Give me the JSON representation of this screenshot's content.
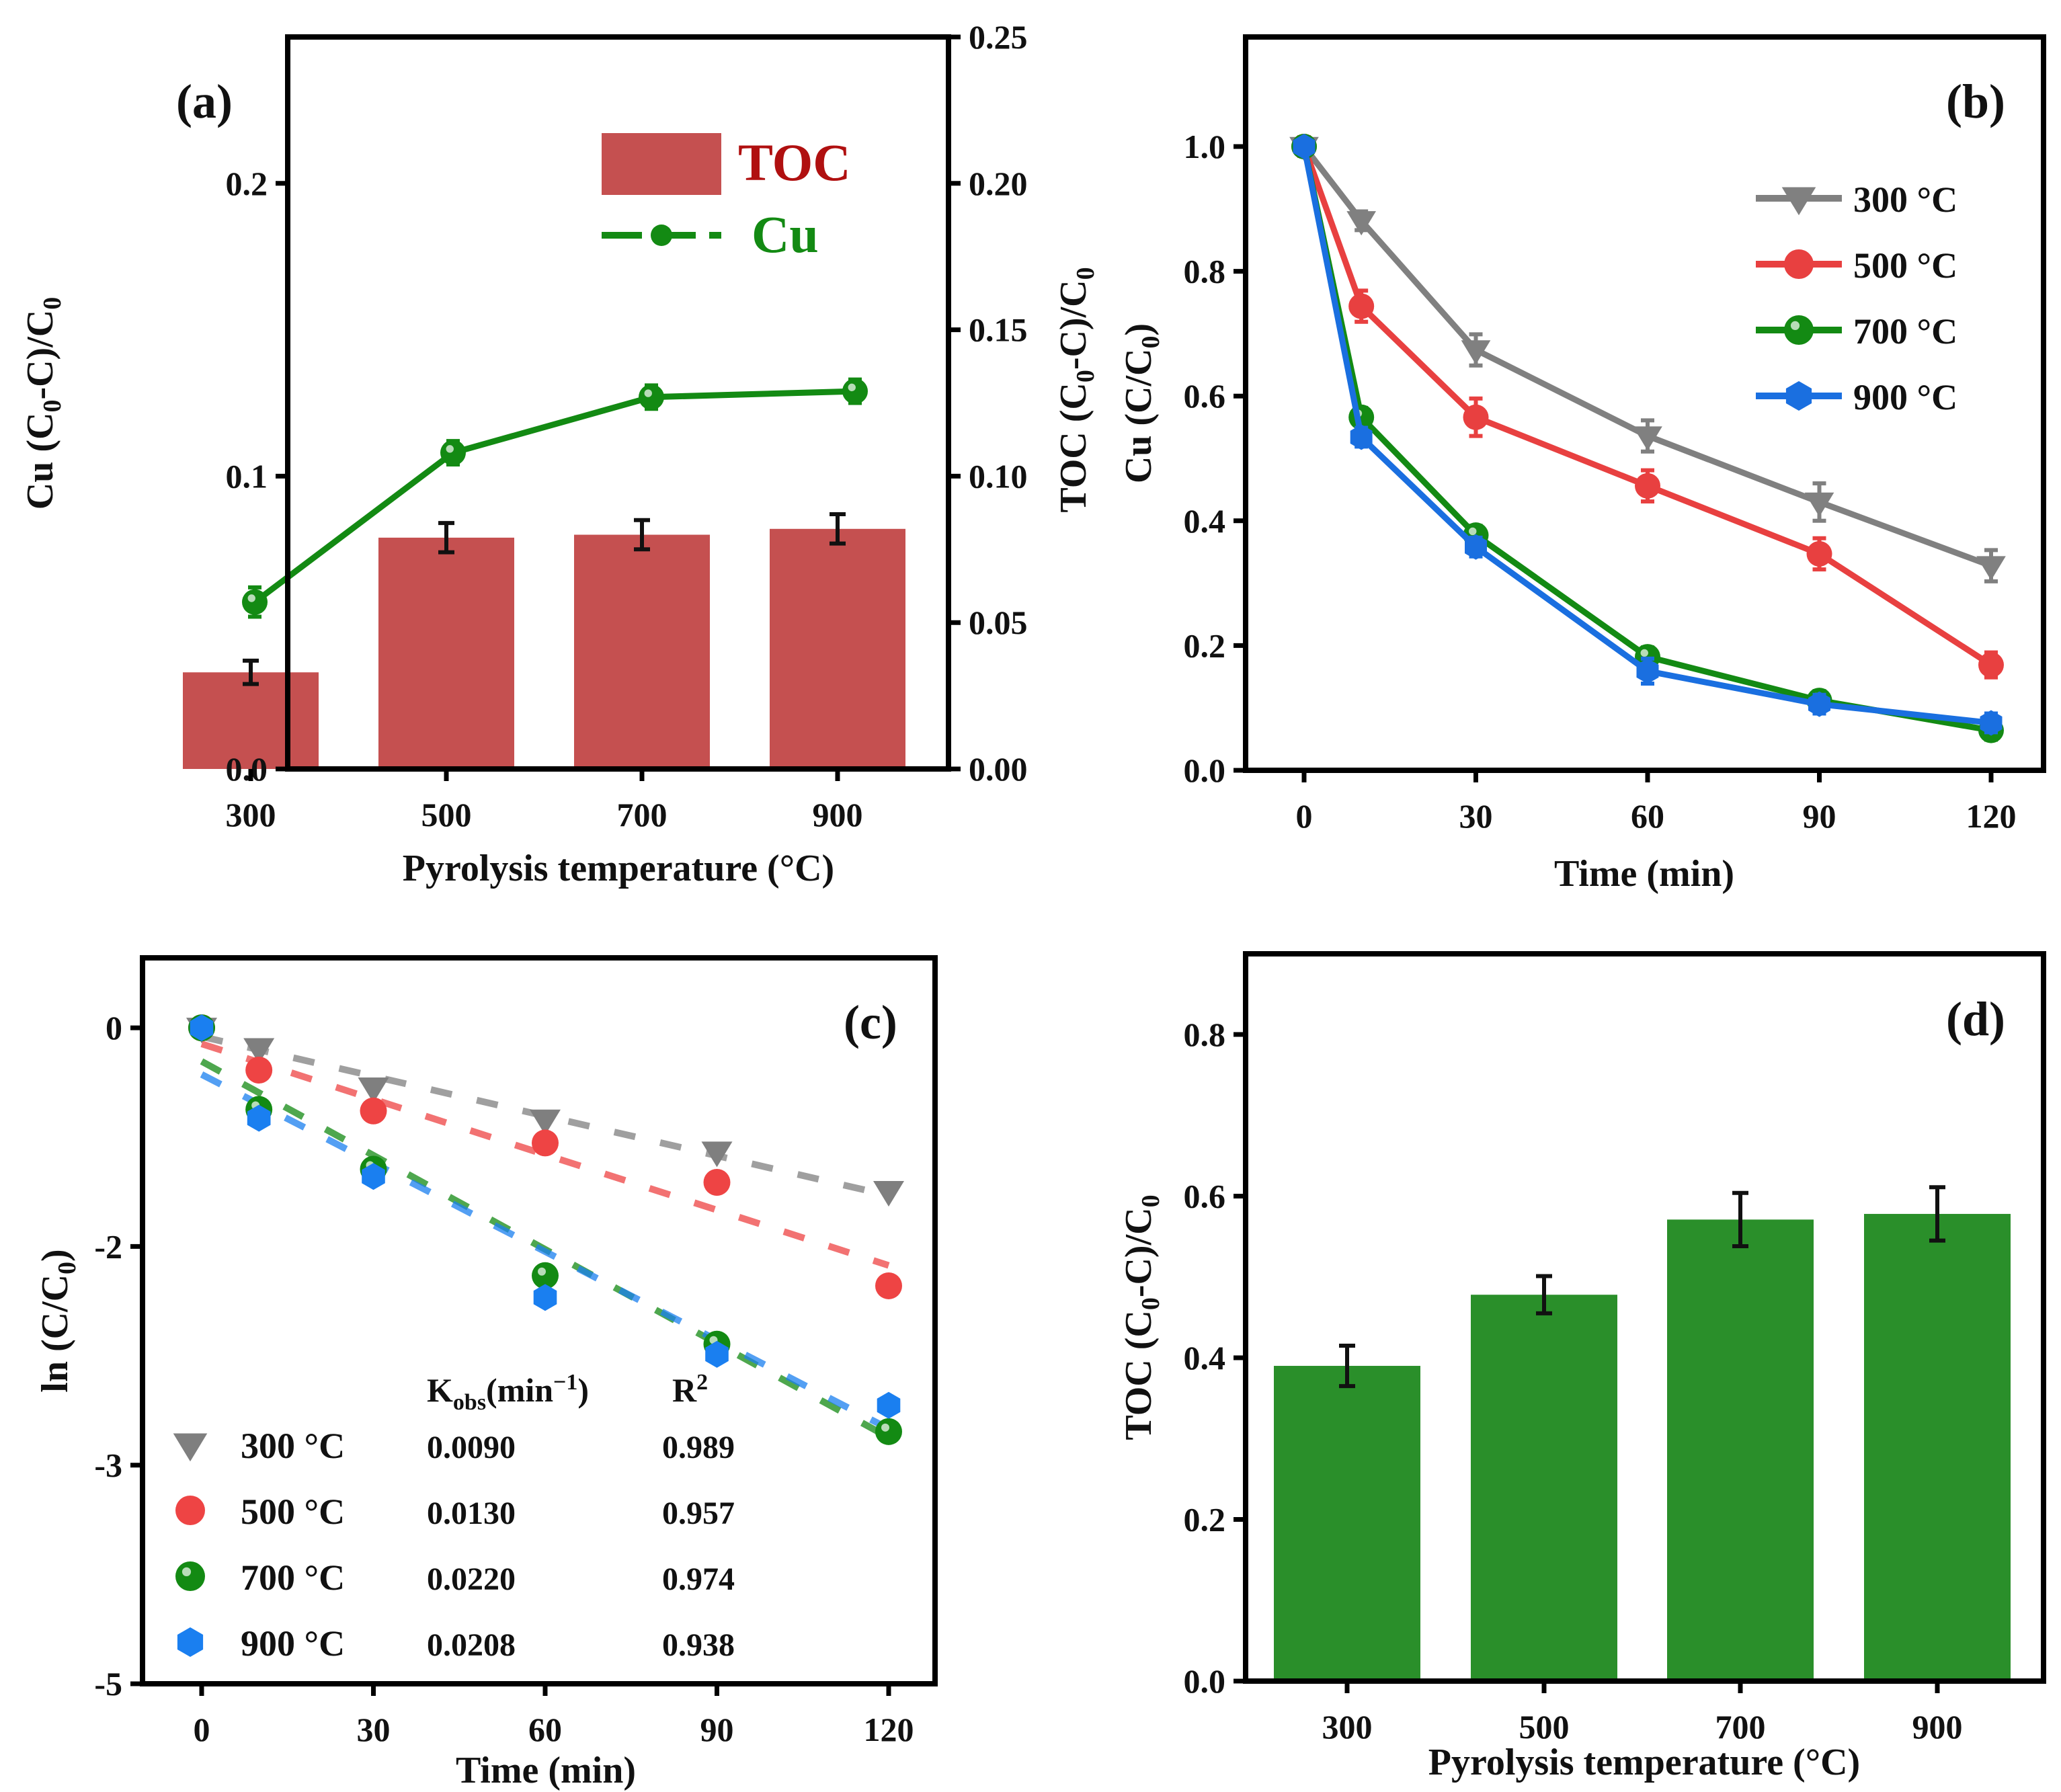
{
  "chart_data": [
    {
      "id": "a",
      "type": "bar+line",
      "panel_label": "(a)",
      "xlabel": "Pyrolysis temperature (°C)",
      "ylabel_left": "Cu (C0-C)/C0",
      "ylabel_right": "TOC (C0-C)/C0",
      "categories": [
        "300",
        "500",
        "700",
        "900"
      ],
      "ylim_left": [
        0,
        0.25
      ],
      "yticks_left": [
        0.0,
        0.1,
        0.2
      ],
      "ytick_labels_left": [
        "0.0",
        "0.1",
        "0.2"
      ],
      "ylim_right": [
        0,
        0.25
      ],
      "yticks_right": [
        0.0,
        0.05,
        0.1,
        0.15,
        0.2,
        0.25
      ],
      "ytick_labels_right": [
        "0.00",
        "0.05",
        "0.10",
        "0.15",
        "0.20",
        "0.25"
      ],
      "series": [
        {
          "name": "TOC",
          "kind": "bar",
          "axis": "right",
          "color": "#c55050",
          "values": [
            0.033,
            0.079,
            0.08,
            0.082
          ],
          "errors": [
            0.004,
            0.005,
            0.005,
            0.005
          ]
        },
        {
          "name": "Cu",
          "kind": "line",
          "axis": "left",
          "color": "#138a13",
          "values": [
            0.057,
            0.108,
            0.127,
            0.129
          ],
          "errors": [
            0.005,
            0.004,
            0.004,
            0.004
          ]
        }
      ],
      "legend": {
        "placement": "top-right",
        "entries": [
          {
            "label": "TOC",
            "color": "#b01010"
          },
          {
            "label": "Cu",
            "color": "#138a13"
          }
        ]
      },
      "grid": false
    },
    {
      "id": "b",
      "type": "line",
      "panel_label": "(b)",
      "xlabel": "Time (min)",
      "ylabel": "Cu (C/C0)",
      "x": [
        0,
        10,
        30,
        60,
        90,
        120
      ],
      "xticks": [
        0,
        30,
        60,
        90,
        120
      ],
      "xlim": [
        -10,
        130
      ],
      "ylim": [
        0,
        1.17
      ],
      "yticks": [
        0.0,
        0.2,
        0.4,
        0.6,
        0.8,
        1.0
      ],
      "ytick_labels": [
        "0.0",
        "0.2",
        "0.4",
        "0.6",
        "0.8",
        "1.0"
      ],
      "series": [
        {
          "name": "300 °C",
          "marker": "triangle-down",
          "color": "#808080",
          "values": [
            1.0,
            0.881,
            0.674,
            0.536,
            0.43,
            0.328
          ],
          "errors": [
            0.015,
            0.015,
            0.025,
            0.025,
            0.03,
            0.025
          ]
        },
        {
          "name": "500 °C",
          "marker": "circle",
          "color": "#e84040",
          "values": [
            1.0,
            0.744,
            0.566,
            0.456,
            0.347,
            0.169
          ],
          "errors": [
            0.015,
            0.025,
            0.03,
            0.025,
            0.025,
            0.02
          ]
        },
        {
          "name": "700 °C",
          "marker": "sphere",
          "color": "#138a13",
          "values": [
            1.0,
            0.566,
            0.377,
            0.182,
            0.112,
            0.064
          ],
          "errors": [
            0.01,
            0.015,
            0.015,
            0.015,
            0.015,
            0.015
          ]
        },
        {
          "name": "900 °C",
          "marker": "hexagon",
          "color": "#1a6fe0",
          "values": [
            1.0,
            0.534,
            0.358,
            0.159,
            0.106,
            0.076
          ],
          "errors": [
            0.01,
            0.015,
            0.015,
            0.02,
            0.015,
            0.015
          ]
        }
      ],
      "legend": {
        "placement": "top-right"
      },
      "grid": false
    },
    {
      "id": "c",
      "type": "scatter",
      "panel_label": "(c)",
      "xlabel": "Time (min)",
      "ylabel": "ln (C/C0)",
      "x": [
        0,
        10,
        30,
        60,
        90,
        120
      ],
      "xticks": [
        0,
        30,
        60,
        90,
        120
      ],
      "xlim": [
        -10,
        130
      ],
      "ylim": [
        -4.5,
        0.48
      ],
      "yticks": [
        0,
        -1.5,
        -3,
        -4.5
      ],
      "ytick_labels": [
        "0",
        "-2",
        "-3",
        "-5"
      ],
      "series": [
        {
          "name": "300 °C",
          "marker": "triangle-down",
          "color": "#7f7f7f",
          "values": [
            0,
            -0.14,
            -0.41,
            -0.63,
            -0.85,
            -1.12
          ],
          "fit": [
            -0.06,
            -1.15
          ],
          "kobs": "0.0090",
          "r2": "0.989"
        },
        {
          "name": "500 °C",
          "marker": "circle",
          "color": "#ee4444",
          "values": [
            0,
            -0.29,
            -0.57,
            -0.79,
            -1.06,
            -1.77
          ],
          "fit": [
            -0.11,
            -1.63
          ],
          "kobs": "0.0130",
          "r2": "0.957"
        },
        {
          "name": "700 °C",
          "marker": "sphere",
          "color": "#138a13",
          "values": [
            0,
            -0.56,
            -0.97,
            -1.7,
            -2.17,
            -2.77
          ],
          "fit": [
            -0.23,
            -2.81
          ],
          "kobs": "0.0220",
          "r2": "0.974"
        },
        {
          "name": "900 °C",
          "marker": "hexagon",
          "color": "#1a7ff0",
          "values": [
            0,
            -0.62,
            -1.02,
            -1.85,
            -2.24,
            -2.59
          ],
          "fit": [
            -0.32,
            -2.75
          ],
          "kobs": "0.0208",
          "r2": "0.938"
        }
      ],
      "table_headers": {
        "kobs": "K",
        "kobs_sub": "obs",
        "kobs_unit": "(min",
        "kobs_sup": "−1",
        "kobs_close": ")",
        "r2": "R",
        "r2_sup": "2"
      },
      "legend": {
        "placement": "bottom-left"
      },
      "grid": false
    },
    {
      "id": "d",
      "type": "bar",
      "panel_label": "(d)",
      "xlabel": "Pyrolysis temperature (°C)",
      "ylabel": "TOC (C0-C)/C0",
      "categories": [
        "300",
        "500",
        "700",
        "900"
      ],
      "values": [
        0.39,
        0.478,
        0.571,
        0.578
      ],
      "errors": [
        0.025,
        0.023,
        0.033,
        0.033
      ],
      "color": "#2a8f2a",
      "ylim": [
        0,
        0.9
      ],
      "yticks": [
        0.0,
        0.2,
        0.4,
        0.6,
        0.8
      ],
      "ytick_labels": [
        "0.0",
        "0.2",
        "0.4",
        "0.6",
        "0.8"
      ],
      "grid": false
    }
  ]
}
